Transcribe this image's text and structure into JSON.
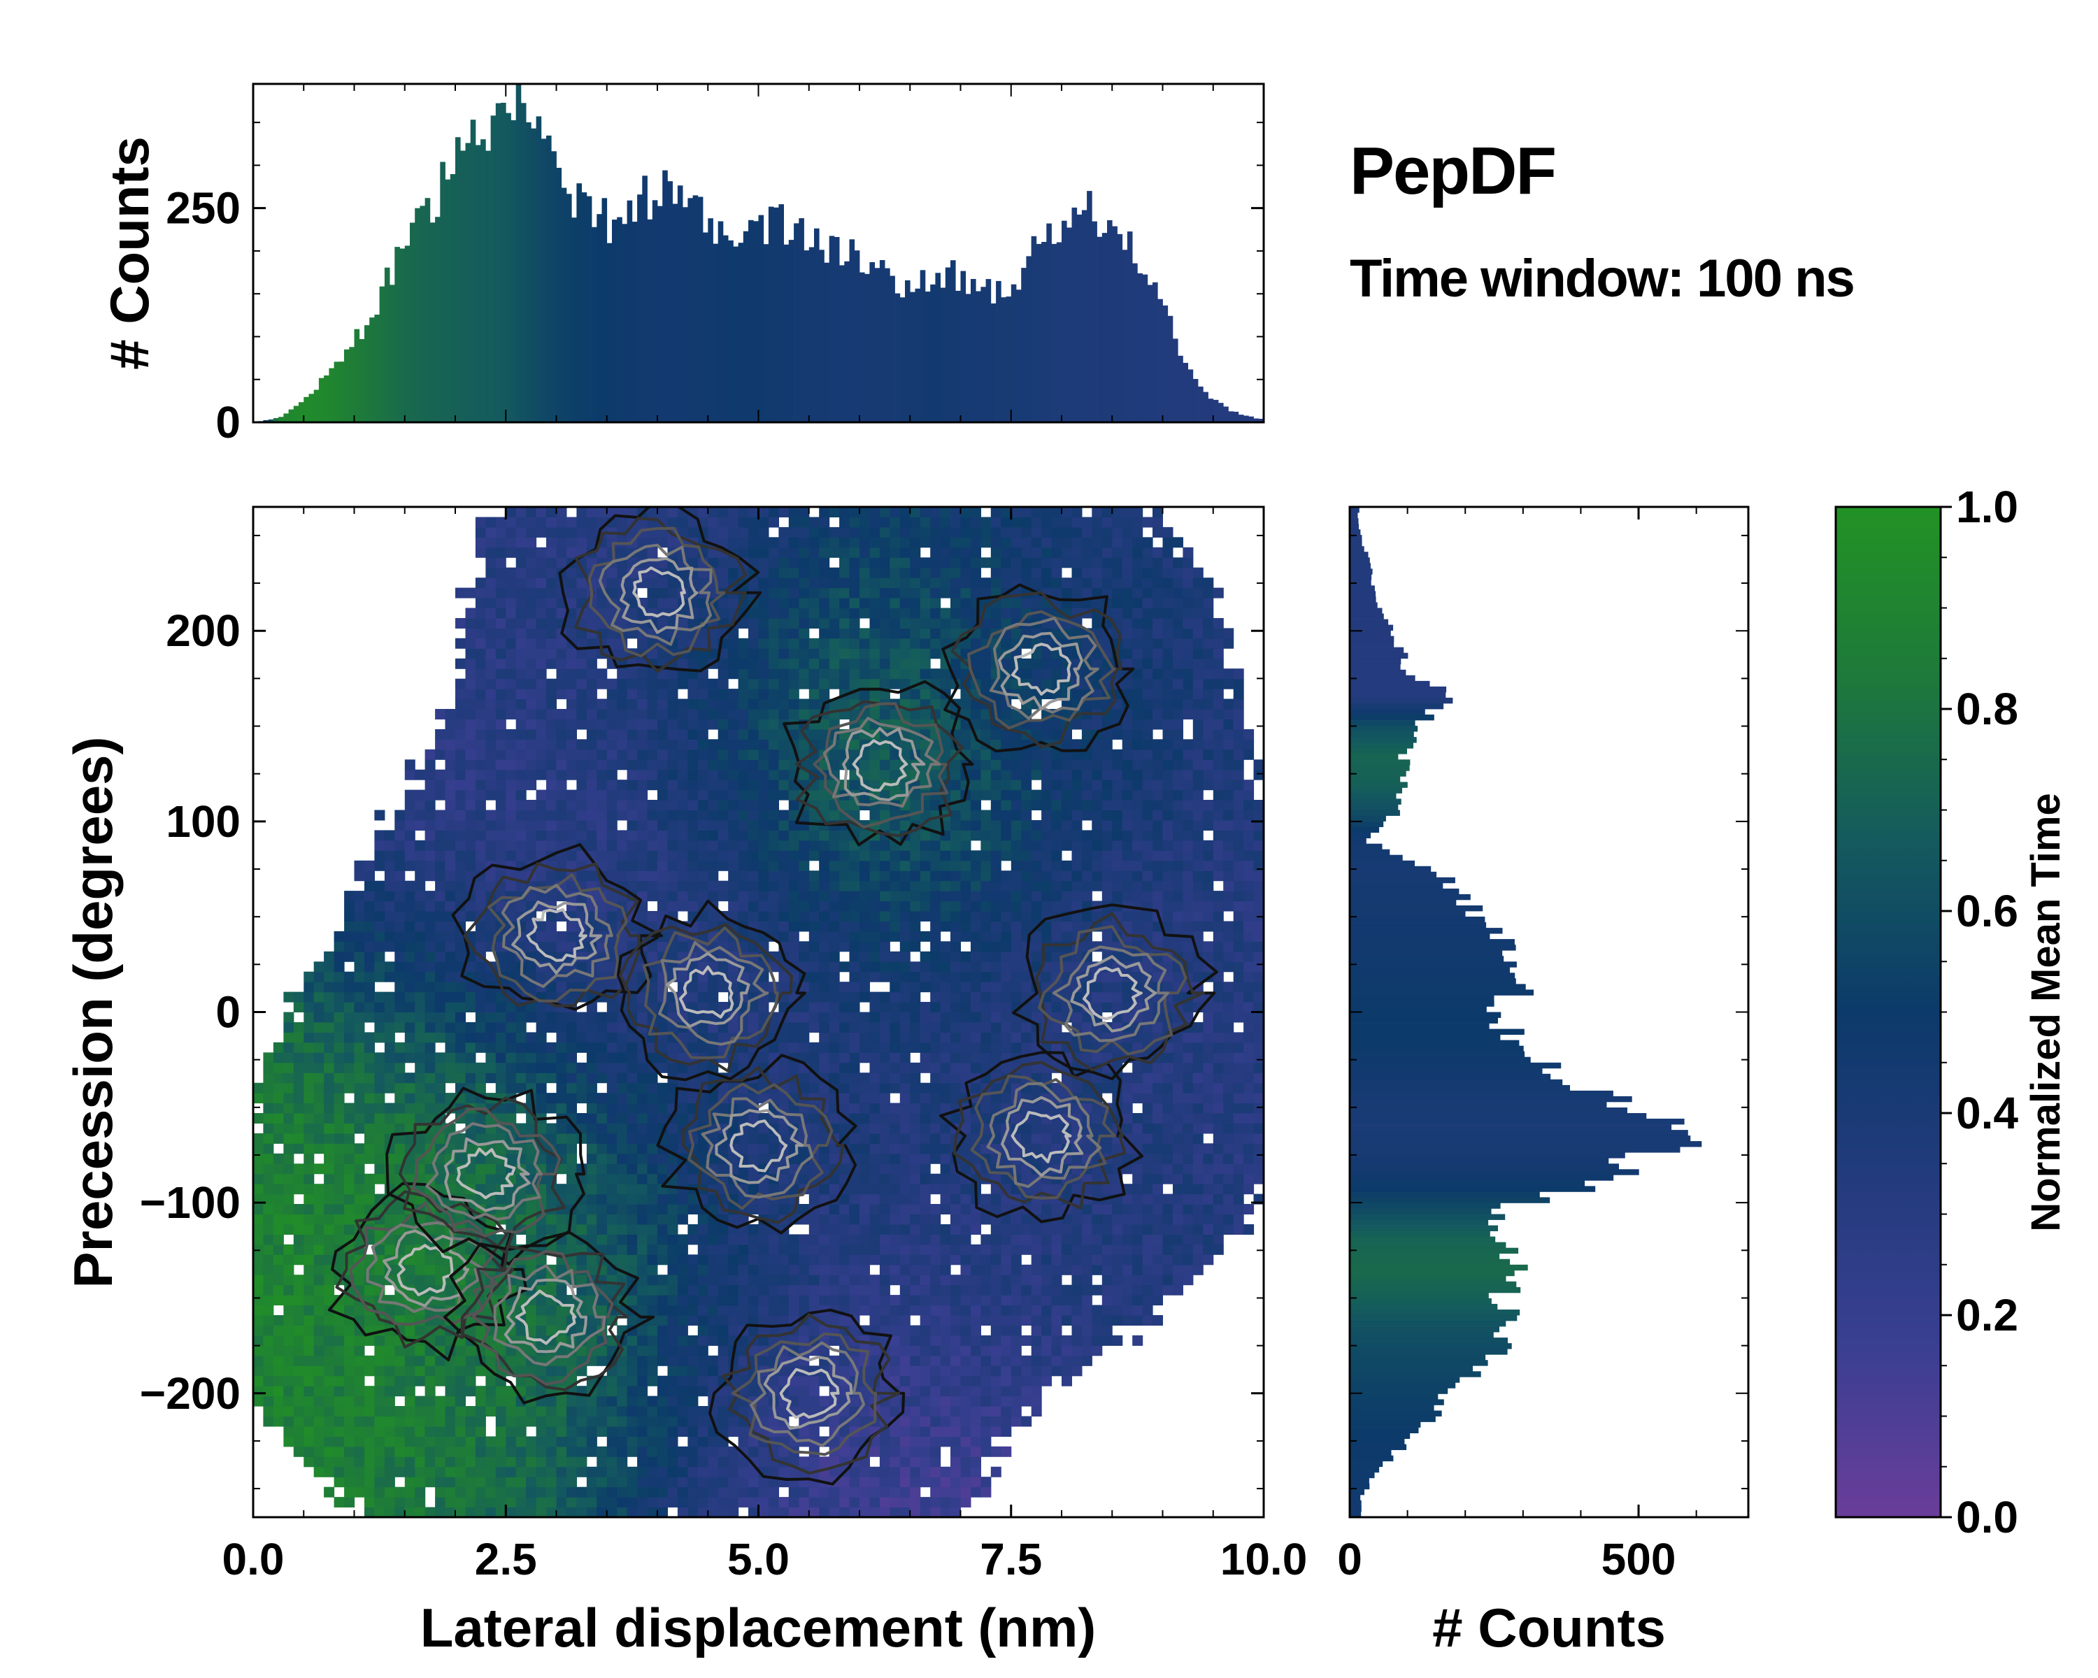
{
  "title": "PepDF",
  "subtitle": "Time window: 100 ns",
  "chart_data": [
    {
      "name": "joint-histogram-heatmap",
      "type": "heatmap",
      "xlabel": "Lateral displacement (nm)",
      "ylabel": "Precession (degrees)",
      "xlim": [
        0.0,
        10.0
      ],
      "ylim": [
        -265,
        265
      ],
      "xticks": [
        0.0,
        2.5,
        5.0,
        7.5,
        10.0
      ],
      "xtick_labels": [
        "0.0",
        "2.5",
        "5.0",
        "7.5",
        "10.0"
      ],
      "yticks": [
        -200,
        -100,
        0,
        100,
        200
      ],
      "ytick_labels": [
        "−200",
        "−100",
        "0",
        "100",
        "200"
      ],
      "color_meaning": "Normalized Mean Time",
      "density_modes": [
        {
          "x": 1.7,
          "y": -135,
          "color": 0.95
        },
        {
          "x": 2.3,
          "y": -85,
          "color": 0.85
        },
        {
          "x": 2.9,
          "y": -160,
          "color": 0.7
        },
        {
          "x": 5.0,
          "y": -70,
          "color": 0.45
        },
        {
          "x": 7.8,
          "y": -65,
          "color": 0.35
        },
        {
          "x": 3.0,
          "y": 40,
          "color": 0.25
        },
        {
          "x": 4.5,
          "y": 10,
          "color": 0.2
        },
        {
          "x": 8.5,
          "y": 10,
          "color": 0.3
        },
        {
          "x": 6.2,
          "y": 130,
          "color": 0.9
        },
        {
          "x": 4.0,
          "y": 220,
          "color": 0.3
        },
        {
          "x": 7.8,
          "y": 180,
          "color": 0.35
        },
        {
          "x": 5.5,
          "y": -200,
          "color": 0.15
        }
      ]
    },
    {
      "name": "top-marginal-histogram",
      "type": "bar",
      "ylabel": "# Counts",
      "xlim": [
        0.0,
        10.0
      ],
      "ylim": [
        0,
        395
      ],
      "yticks": [
        0,
        250
      ],
      "ytick_labels": [
        "0",
        "250"
      ],
      "x": [
        0.25,
        0.5,
        0.75,
        1.0,
        1.25,
        1.5,
        1.75,
        2.0,
        2.25,
        2.5,
        2.75,
        3.0,
        3.25,
        3.5,
        3.75,
        4.0,
        4.25,
        4.5,
        4.75,
        5.0,
        5.25,
        5.5,
        5.75,
        6.0,
        6.25,
        6.5,
        6.75,
        7.0,
        7.25,
        7.5,
        7.75,
        8.0,
        8.25,
        8.5,
        8.75,
        9.0,
        9.25,
        9.5,
        9.75,
        10.0
      ],
      "values": [
        5,
        25,
        60,
        95,
        145,
        215,
        255,
        300,
        330,
        360,
        350,
        305,
        250,
        235,
        250,
        270,
        285,
        240,
        225,
        230,
        230,
        225,
        205,
        185,
        175,
        155,
        165,
        175,
        150,
        165,
        200,
        230,
        245,
        215,
        195,
        150,
        60,
        25,
        10,
        3
      ],
      "colors": [
        0.9,
        0.95,
        0.92,
        0.85,
        0.8,
        0.75,
        0.72,
        0.7,
        0.68,
        0.66,
        0.6,
        0.55,
        0.52,
        0.5,
        0.47,
        0.45,
        0.45,
        0.46,
        0.48,
        0.47,
        0.45,
        0.44,
        0.43,
        0.42,
        0.42,
        0.44,
        0.45,
        0.43,
        0.42,
        0.41,
        0.4,
        0.38,
        0.38,
        0.37,
        0.36,
        0.35,
        0.34,
        0.33,
        0.32,
        0.32
      ]
    },
    {
      "name": "right-marginal-histogram",
      "type": "bar",
      "orientation": "horizontal",
      "xlabel": "# Counts",
      "xlim": [
        0,
        690
      ],
      "xticks": [
        0,
        500
      ],
      "xtick_labels": [
        "0",
        "500"
      ],
      "y": [
        255,
        240,
        225,
        210,
        195,
        180,
        165,
        150,
        135,
        120,
        105,
        90,
        75,
        60,
        45,
        30,
        15,
        0,
        -15,
        -30,
        -45,
        -60,
        -75,
        -90,
        -105,
        -120,
        -135,
        -150,
        -165,
        -180,
        -195,
        -210,
        -225,
        -240,
        -255
      ],
      "values": [
        15,
        30,
        40,
        55,
        80,
        100,
        170,
        120,
        95,
        100,
        80,
        30,
        150,
        190,
        245,
        280,
        310,
        250,
        300,
        360,
        460,
        620,
        520,
        420,
        240,
        260,
        290,
        260,
        270,
        250,
        190,
        150,
        100,
        50,
        20
      ],
      "colors": [
        0.35,
        0.35,
        0.34,
        0.33,
        0.33,
        0.32,
        0.33,
        0.6,
        0.72,
        0.7,
        0.6,
        0.45,
        0.42,
        0.44,
        0.45,
        0.46,
        0.48,
        0.5,
        0.5,
        0.46,
        0.42,
        0.4,
        0.42,
        0.48,
        0.6,
        0.72,
        0.75,
        0.7,
        0.62,
        0.58,
        0.55,
        0.52,
        0.5,
        0.48,
        0.46
      ]
    },
    {
      "name": "colorbar",
      "type": "colorbar",
      "label": "Normalized Mean Time",
      "range": [
        0.0,
        1.0
      ],
      "ticks": [
        0.0,
        0.2,
        0.4,
        0.6,
        0.8,
        1.0
      ],
      "tick_labels": [
        "0.0",
        "0.2",
        "0.4",
        "0.6",
        "0.8",
        "1.0"
      ],
      "colormap_stops": [
        "#6a3d9a",
        "#3a3f92",
        "#233b7d",
        "#0c3a6a",
        "#145a5e",
        "#1e7a3a",
        "#229224"
      ]
    }
  ]
}
